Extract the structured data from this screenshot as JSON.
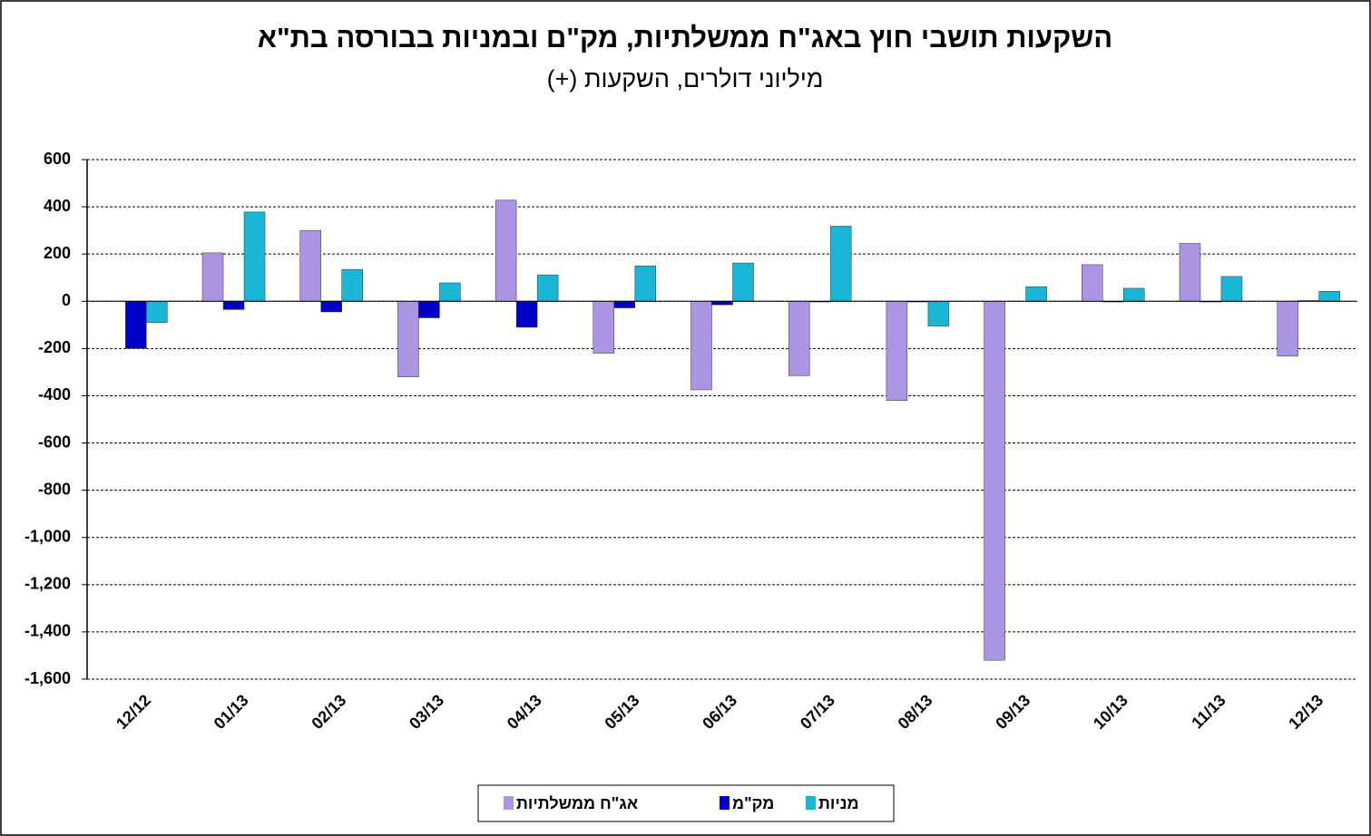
{
  "chart_data": {
    "type": "bar",
    "title": "השקעות תושבי חוץ באג\"ח ממשלתיות, מק\"ם ובמניות בבורסה בת\"א",
    "subtitle": "מיליוני דולרים, השקעות (+)",
    "categories": [
      "12/12",
      "01/13",
      "02/13",
      "03/13",
      "04/13",
      "05/13",
      "06/13",
      "07/13",
      "08/13",
      "09/13",
      "10/13",
      "11/13",
      "12/13"
    ],
    "series": [
      {
        "name": "אג\"ח ממשלתיות",
        "color": "#ab94e2",
        "values": [
          0,
          205,
          300,
          -320,
          428,
          -220,
          -375,
          -315,
          -420,
          -1520,
          155,
          245,
          -232
        ]
      },
      {
        "name": "מק\"מ",
        "color": "#0000c8",
        "values": [
          -200,
          -35,
          -45,
          -70,
          -110,
          -28,
          -15,
          -3,
          -3,
          0,
          -3,
          -3,
          3
        ]
      },
      {
        "name": "מניות",
        "color": "#19b6d6",
        "values": [
          -90,
          378,
          135,
          78,
          112,
          150,
          162,
          318,
          -105,
          62,
          55,
          105,
          42
        ]
      }
    ],
    "ylim": [
      -1600,
      600
    ],
    "yticks": [
      600,
      400,
      200,
      0,
      -200,
      -400,
      -600,
      -800,
      {
        "value": -1000,
        "label": "-1,000"
      },
      {
        "value": -1200,
        "label": "-1,200"
      },
      {
        "value": -1400,
        "label": "-1,400"
      },
      {
        "value": -1600,
        "label": "-1,600"
      }
    ],
    "grid": true,
    "legend": "bottom"
  }
}
